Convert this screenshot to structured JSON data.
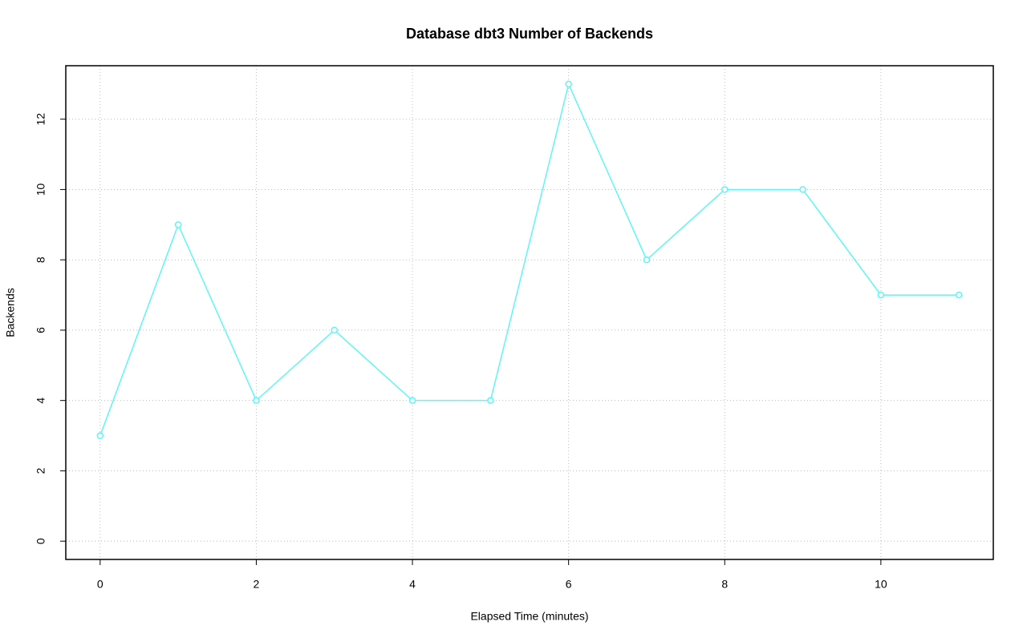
{
  "chart_data": {
    "type": "line",
    "title": "Database dbt3 Number of Backends",
    "x_label": "Elapsed Time (minutes)",
    "y_label": "Backends",
    "x": [
      0,
      1,
      2,
      3,
      4,
      5,
      6,
      7,
      8,
      9,
      10,
      11
    ],
    "series": [
      {
        "name": "Backends",
        "color": "#5ff6f6",
        "values": [
          3,
          9,
          4,
          6,
          4,
          4,
          13,
          8,
          10,
          10,
          7,
          7
        ]
      }
    ],
    "xlim": [
      -0.44,
      11.44
    ],
    "xticks": [
      0,
      2,
      4,
      6,
      8,
      10
    ],
    "ylim": [
      -0.52,
      13.52
    ],
    "yticks": [
      0,
      2,
      4,
      6,
      8,
      10,
      12
    ],
    "grid": true
  }
}
